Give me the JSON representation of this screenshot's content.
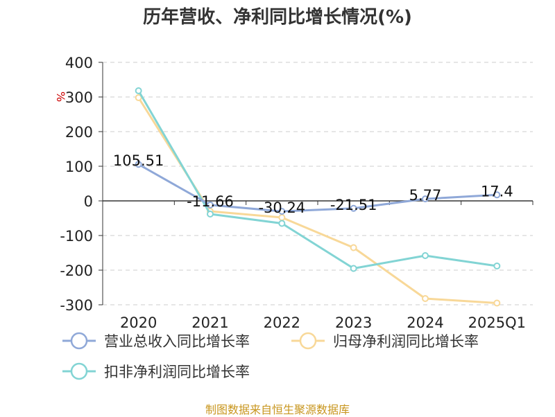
{
  "chart_data": {
    "type": "line",
    "title": "历年营收、净利同比增长情况(%)",
    "ylabel": "%",
    "xlabel": "",
    "categories": [
      "2020",
      "2021",
      "2022",
      "2023",
      "2024",
      "2025Q1"
    ],
    "ylim": [
      -300,
      400
    ],
    "yticks": [
      400,
      300,
      200,
      100,
      0,
      -100,
      -200,
      -300
    ],
    "grid": true,
    "legend_position": "bottom",
    "series": [
      {
        "name": "营业总收入同比增长率",
        "color": "#8fa8d8",
        "values": [
          105.51,
          -11.66,
          -30.24,
          -21.51,
          5.77,
          17.4
        ],
        "labels": [
          "105.51",
          "-11.66",
          "-30.24",
          "-21.51",
          "5.77",
          "17.4"
        ]
      },
      {
        "name": "归母净利润同比增长率",
        "color": "#f8d898",
        "values": [
          298,
          -30,
          -48,
          -135,
          -282,
          -295
        ]
      },
      {
        "name": "扣非净利润同比增长率",
        "color": "#82d4d4",
        "values": [
          318,
          -38,
          -65,
          -195,
          -158,
          -188
        ]
      }
    ]
  },
  "source": "制图数据来自恒生聚源数据库"
}
